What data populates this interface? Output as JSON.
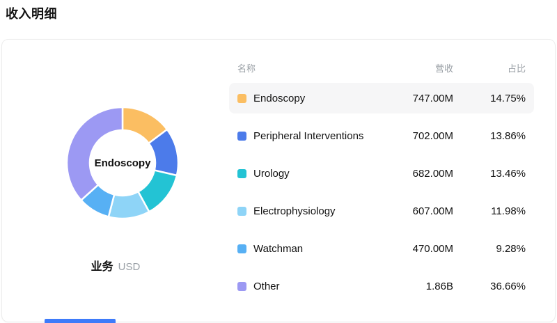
{
  "page": {
    "title": "收入明细"
  },
  "donut": {
    "center_label": "Endoscopy",
    "dimension_label": "业务",
    "currency_label": "USD"
  },
  "table": {
    "headers": {
      "name": "名称",
      "revenue": "营收",
      "share": "占比"
    }
  },
  "chart_data": {
    "type": "pie",
    "donut": true,
    "title": "收入明细",
    "center_label": "Endoscopy",
    "unit": "USD",
    "legend_position": "right-table",
    "start_angle_deg": -90,
    "direction": "clockwise",
    "series": [
      {
        "name": "Endoscopy",
        "revenue": "747.00M",
        "share_pct": 14.75,
        "color": "#FBBE62",
        "highlighted": true
      },
      {
        "name": "Peripheral Interventions",
        "revenue": "702.00M",
        "share_pct": 13.86,
        "color": "#4C7BEA",
        "highlighted": false
      },
      {
        "name": "Urology",
        "revenue": "682.00M",
        "share_pct": 13.46,
        "color": "#23C3D4",
        "highlighted": false
      },
      {
        "name": "Electrophysiology",
        "revenue": "607.00M",
        "share_pct": 11.98,
        "color": "#8ED4F7",
        "highlighted": false
      },
      {
        "name": "Watchman",
        "revenue": "470.00M",
        "share_pct": 9.28,
        "color": "#57B0F4",
        "highlighted": false
      },
      {
        "name": "Other",
        "revenue": "1.86B",
        "share_pct": 36.66,
        "color": "#9C99F3",
        "highlighted": false
      }
    ]
  }
}
